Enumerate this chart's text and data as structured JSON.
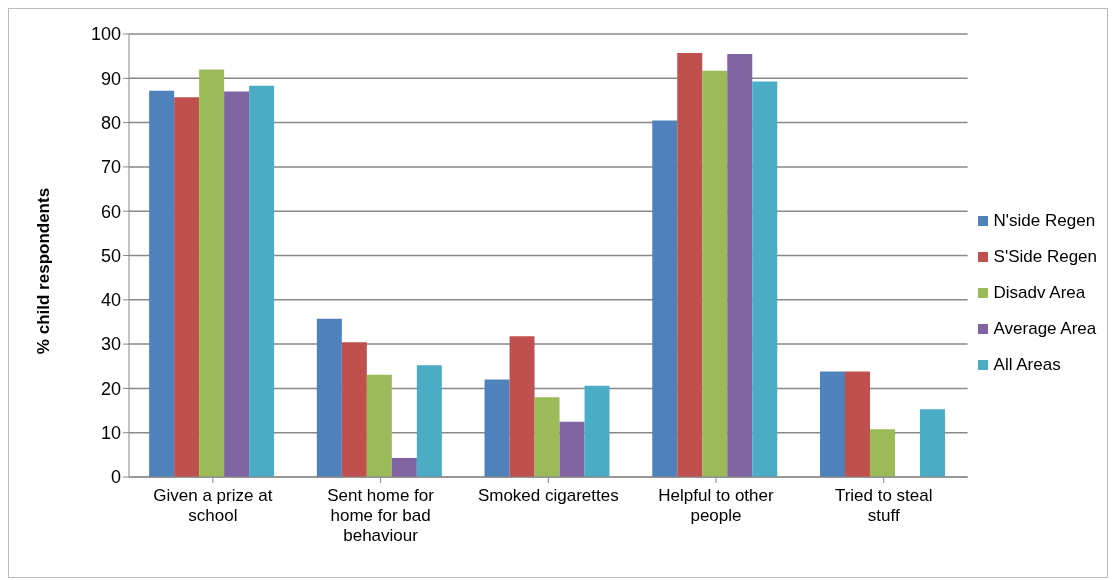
{
  "chart_data": {
    "type": "bar",
    "ylabel": "% child respondents",
    "categories": [
      "Given a prize at school",
      "Sent home for home for bad behaviour",
      "Smoked cigarettes",
      "Helpful to other people",
      "Tried to steal stuff"
    ],
    "series": [
      {
        "name": "N'side Regen",
        "color": "#4f81bd",
        "values": [
          87.2,
          35.7,
          22,
          80.5,
          23.8
        ]
      },
      {
        "name": "S'Side Regen",
        "color": "#c0504d",
        "values": [
          85.7,
          30.4,
          31.8,
          95.7,
          23.8
        ]
      },
      {
        "name": "Disadv Area",
        "color": "#9bbb59",
        "values": [
          92,
          23.1,
          18,
          91.7,
          10.8
        ]
      },
      {
        "name": "Average Area",
        "color": "#8064a2",
        "values": [
          87,
          4.3,
          12.5,
          95.5,
          null
        ]
      },
      {
        "name": "All Areas",
        "color": "#4bacc6",
        "values": [
          88.3,
          25.2,
          20.6,
          89.3,
          15.3
        ]
      }
    ],
    "ylim": [
      0,
      100
    ],
    "yticks": [
      0,
      10,
      20,
      30,
      40,
      50,
      60,
      70,
      80,
      90,
      100
    ],
    "grid": "y",
    "legend": "right"
  }
}
